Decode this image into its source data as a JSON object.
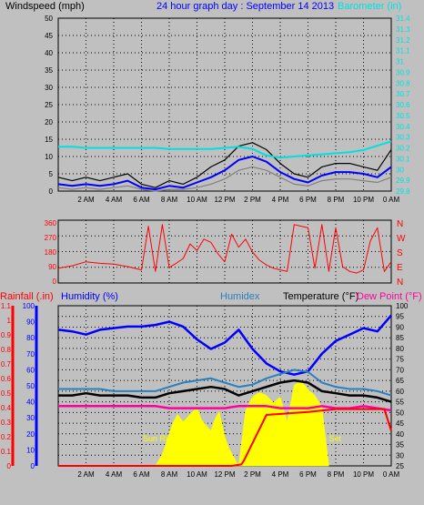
{
  "header": {
    "left_label": "Windspeed (mph)",
    "title": "24 hour graph day : September 14 2013",
    "right_label": "Barometer (in)"
  },
  "colors": {
    "background": "#c0c0c0",
    "plot_bg": "#c0c0c0",
    "grid": "#000000",
    "wind_gust": "#000000",
    "wind_avg": "#0000ff",
    "wind_low": "#808080",
    "barometer": "#00e0e0",
    "direction": "#ff0000",
    "rain": "#ff0000",
    "humidity": "#0000ff",
    "humidex": "#2a7fbf",
    "temperature": "#000000",
    "dewpoint": "#ff00a0",
    "solar": "#ffff00"
  },
  "x_ticks": [
    "2 AM",
    "4 AM",
    "6 AM",
    "8 AM",
    "10 AM",
    "12 PM",
    "2 PM",
    "4 PM",
    "6 PM",
    "8 PM",
    "10 PM",
    "0 AM"
  ],
  "chart_data": [
    {
      "type": "line",
      "panel": "wind",
      "x_unit": "hour",
      "xlim": [
        0,
        24
      ],
      "ylim": [
        0,
        50
      ],
      "y_ticks_left": [
        "0",
        "5",
        "10",
        "15",
        "20",
        "25",
        "30",
        "35",
        "40",
        "45",
        "50"
      ],
      "y_ticks_right": [
        "29.8",
        "29.9",
        "30",
        "30.1",
        "30.2",
        "30.3",
        "30.4",
        "30.5",
        "30.6",
        "30.7",
        "30.8",
        "30.9",
        "31",
        "31.1",
        "31.2",
        "31.3",
        "31.4"
      ],
      "right_ylim": [
        29.8,
        31.4
      ],
      "series": [
        {
          "name": "Windspeed (mph)",
          "x": [
            0,
            1,
            2,
            3,
            4,
            5,
            6,
            7,
            8,
            9,
            10,
            11,
            12,
            13,
            14,
            15,
            16,
            17,
            18,
            19,
            20,
            21,
            22,
            23,
            24
          ],
          "values": [
            4,
            3,
            4,
            3,
            4,
            5,
            2,
            1,
            3,
            2,
            4,
            7,
            9,
            13,
            14,
            12,
            8,
            5,
            4,
            7,
            8,
            8,
            7,
            6,
            12
          ]
        },
        {
          "name": "",
          "x": [
            0,
            1,
            2,
            3,
            4,
            5,
            6,
            7,
            8,
            9,
            10,
            11,
            12,
            13,
            14,
            15,
            16,
            17,
            18,
            19,
            20,
            21,
            22,
            23,
            24
          ],
          "values": [
            2,
            1.5,
            2,
            1.5,
            2,
            3,
            1,
            0.5,
            1.5,
            1,
            2.5,
            4,
            6,
            9,
            10,
            8.5,
            5.5,
            3.5,
            2.5,
            4.5,
            5.5,
            5.5,
            5,
            4,
            7
          ]
        },
        {
          "name": "",
          "x": [
            0,
            1,
            2,
            3,
            4,
            5,
            6,
            7,
            8,
            9,
            10,
            11,
            12,
            13,
            14,
            15,
            16,
            17,
            18,
            19,
            20,
            21,
            22,
            23,
            24
          ],
          "values": [
            1,
            0.5,
            1,
            0.5,
            1,
            1.5,
            0.5,
            0,
            0.5,
            0.5,
            1,
            2,
            3.5,
            6,
            7,
            6,
            4,
            2,
            1.5,
            3,
            3.5,
            3.5,
            3,
            2.5,
            4
          ]
        },
        {
          "name": "Barometer (in)",
          "axis": "right",
          "x": [
            0,
            1,
            2,
            3,
            4,
            5,
            6,
            7,
            8,
            9,
            10,
            11,
            12,
            13,
            14,
            15,
            16,
            17,
            18,
            19,
            20,
            21,
            22,
            23,
            24
          ],
          "values": [
            30.21,
            30.21,
            30.2,
            30.2,
            30.2,
            30.2,
            30.2,
            30.2,
            30.19,
            30.19,
            30.19,
            30.19,
            30.2,
            30.21,
            30.19,
            30.13,
            30.11,
            30.12,
            30.13,
            30.14,
            30.15,
            30.16,
            30.18,
            30.22,
            30.26
          ]
        }
      ]
    },
    {
      "type": "line",
      "panel": "direction",
      "xlim": [
        0,
        24
      ],
      "ylim": [
        0,
        360
      ],
      "y_ticks_left": [
        "0",
        "90",
        "180",
        "270",
        "360"
      ],
      "y_ticks_right": [
        "N",
        "E",
        "S",
        "W",
        "N"
      ],
      "series": [
        {
          "name": "",
          "x": [
            0,
            1,
            2,
            3,
            4,
            5,
            6,
            6.5,
            7,
            7.5,
            8,
            8.5,
            9,
            9.5,
            10,
            10.5,
            11,
            11.5,
            12,
            12.5,
            13,
            13.5,
            14,
            14.5,
            15,
            15.5,
            16,
            16.5,
            17,
            17.5,
            18,
            18.5,
            19,
            19.5,
            20,
            20.5,
            21,
            21.5,
            22,
            22.5,
            23,
            23.5,
            24
          ],
          "values": [
            80,
            95,
            120,
            110,
            105,
            90,
            70,
            340,
            60,
            350,
            85,
            110,
            140,
            230,
            190,
            260,
            240,
            170,
            120,
            290,
            210,
            260,
            180,
            130,
            100,
            80,
            70,
            60,
            350,
            340,
            330,
            80,
            350,
            60,
            330,
            90,
            60,
            50,
            70,
            250,
            330,
            60,
            120
          ]
        }
      ]
    },
    {
      "type": "line",
      "panel": "temperature",
      "xlim": [
        0,
        24
      ],
      "ylim": [
        25,
        100
      ],
      "y_ticks_left_rain": [
        "0",
        "0.1",
        "0.2",
        "0.3",
        "0.4",
        "0.5",
        "0.6",
        "0.7",
        "0.8",
        "0.9",
        "1",
        "1.1"
      ],
      "y_ticks_left_humidity": [
        "0",
        "10",
        "20",
        "30",
        "40",
        "50",
        "60",
        "70",
        "80",
        "90",
        "100"
      ],
      "y_ticks_right": [
        "25",
        "30",
        "35",
        "40",
        "45",
        "50",
        "55",
        "60",
        "65",
        "70",
        "75",
        "80",
        "85",
        "90",
        "95",
        "100"
      ],
      "header_labels": {
        "rain": "Rainfall (.in)",
        "humidity": "Humidity (%)",
        "humidex": "Humidex",
        "temperature": "Temperature (°F)",
        "dewpoint": "Dew Point (°F)"
      },
      "annotations": [
        "Sun Rise",
        "Sun Set"
      ],
      "series": [
        {
          "name": "Humidity (%)",
          "x": [
            0,
            1,
            2,
            3,
            4,
            5,
            6,
            7,
            8,
            9,
            10,
            11,
            12,
            13,
            14,
            15,
            16,
            17,
            18,
            19,
            20,
            21,
            22,
            23,
            24
          ],
          "values": [
            85,
            84,
            82,
            85,
            86,
            87,
            87,
            88,
            90,
            87,
            79,
            73,
            77,
            85,
            73,
            64,
            59,
            57,
            59,
            70,
            78,
            82,
            86,
            84,
            94
          ]
        },
        {
          "name": "Humidex",
          "x": [
            0,
            1,
            2,
            3,
            4,
            5,
            6,
            7,
            8,
            9,
            10,
            11,
            12,
            13,
            14,
            15,
            16,
            17,
            18,
            19,
            20,
            21,
            22,
            23,
            24
          ],
          "values": [
            61,
            61,
            61,
            61,
            60,
            60,
            60,
            60,
            62,
            64,
            65,
            66,
            64,
            62,
            63,
            66,
            68,
            70,
            69,
            64,
            62,
            61,
            61,
            60,
            58
          ]
        },
        {
          "name": "Temperature (°F)",
          "x": [
            0,
            1,
            2,
            3,
            4,
            5,
            6,
            7,
            8,
            9,
            10,
            11,
            12,
            13,
            14,
            15,
            16,
            17,
            18,
            19,
            20,
            21,
            22,
            23,
            24
          ],
          "values": [
            58,
            58,
            59,
            58,
            58,
            58,
            57,
            57,
            59,
            60,
            61,
            62,
            61,
            58,
            60,
            62,
            64,
            65,
            64,
            60,
            59,
            58,
            58,
            57,
            55
          ]
        },
        {
          "name": "Dew Point (°F)",
          "x": [
            0,
            1,
            2,
            3,
            4,
            5,
            6,
            7,
            8,
            9,
            10,
            11,
            12,
            13,
            14,
            15,
            16,
            17,
            18,
            19,
            20,
            21,
            22,
            23,
            24
          ],
          "values": [
            53,
            53,
            53,
            53,
            53,
            53,
            53,
            53,
            52,
            52,
            52,
            52,
            52,
            53,
            53,
            53,
            52,
            52,
            52,
            53,
            52,
            52,
            53,
            52,
            51
          ]
        },
        {
          "name": "Rainfall (.in)",
          "axis": "rain",
          "x": [
            0,
            12,
            12.5,
            13.2,
            13.4,
            15,
            18,
            20,
            22,
            23.5,
            24
          ],
          "values": [
            0,
            0,
            0,
            0.01,
            0.04,
            0.35,
            0.37,
            0.39,
            0.39,
            0.39,
            0.24
          ]
        },
        {
          "name": "",
          "type": "area",
          "x": [
            7,
            7.5,
            8,
            8.3,
            8.6,
            9,
            9.3,
            9.6,
            10,
            10.3,
            10.6,
            11,
            11.3,
            11.6,
            12,
            12.3,
            12.6,
            13,
            13.5,
            14,
            14.5,
            15,
            15.5,
            16,
            16.5,
            17,
            17.5,
            18,
            18.5,
            19,
            19.5
          ],
          "values": [
            0,
            8,
            22,
            30,
            35,
            30,
            33,
            36,
            40,
            32,
            28,
            24,
            32,
            37,
            20,
            12,
            7,
            0,
            38,
            47,
            50,
            48,
            43,
            47,
            30,
            55,
            58,
            52,
            48,
            40,
            0
          ]
        }
      ]
    }
  ]
}
